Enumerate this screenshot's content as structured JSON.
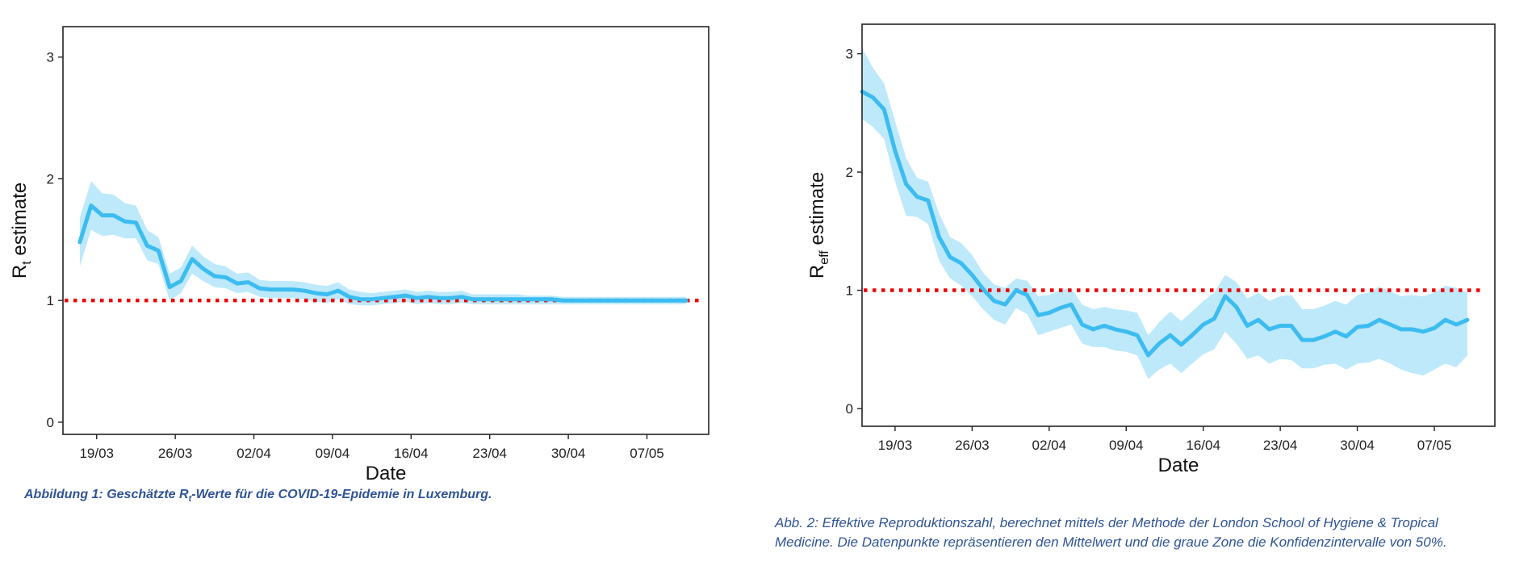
{
  "chart_data": [
    {
      "type": "line",
      "ylabel_main": "R",
      "ylabel_sub": "t",
      "ylabel_rest": " estimate",
      "xlabel": "Date",
      "ylim": [
        -0.1,
        3.25
      ],
      "yticks": [
        "0",
        "1",
        "2",
        "3"
      ],
      "xtick_labels": [
        "19/03",
        "26/03",
        "02/04",
        "09/04",
        "16/04",
        "23/04",
        "30/04",
        "07/05"
      ],
      "xtick_days": [
        3,
        10,
        17,
        24,
        31,
        38,
        45,
        52
      ],
      "xlim_days": [
        0,
        57.5
      ],
      "reference_line": 1,
      "series": [
        {
          "x_days": [
            1.5,
            2.5,
            3.5,
            4.5,
            5.5,
            6.5,
            7.5,
            8.5,
            9.5,
            10.5,
            11.5,
            12.5,
            13.5,
            14.5,
            15.5,
            16.5,
            17.5,
            18.5,
            19.5,
            20.5,
            21.5,
            22.5,
            23.5,
            24.5,
            25.5,
            26.5,
            27.5,
            28.5,
            29.5,
            30.5,
            31.5,
            32.5,
            33.5,
            34.5,
            35.5,
            36.5,
            37.5,
            38.5,
            39.5,
            40.5,
            41.5,
            42.5,
            43.5,
            44.5,
            45.5,
            46.5,
            47.5,
            48.5,
            49.5,
            50.5,
            51.5,
            52.5,
            53.5,
            54.5,
            55.5
          ],
          "mean": [
            1.48,
            1.78,
            1.7,
            1.7,
            1.65,
            1.64,
            1.45,
            1.41,
            1.11,
            1.16,
            1.34,
            1.26,
            1.2,
            1.19,
            1.14,
            1.15,
            1.1,
            1.09,
            1.09,
            1.09,
            1.08,
            1.06,
            1.05,
            1.08,
            1.03,
            1.01,
            1.01,
            1.02,
            1.03,
            1.04,
            1.02,
            1.03,
            1.02,
            1.02,
            1.03,
            1.01,
            1.01,
            1.01,
            1.01,
            1.01,
            1.01,
            1.01,
            1.01,
            1.0,
            1.0,
            1.0,
            1.0,
            1.0,
            1.0,
            1.0,
            1.0,
            1.0,
            1.0,
            1.0,
            1.0
          ],
          "lower": [
            1.28,
            1.58,
            1.53,
            1.54,
            1.51,
            1.51,
            1.33,
            1.3,
            1.0,
            1.06,
            1.22,
            1.16,
            1.11,
            1.1,
            1.06,
            1.07,
            1.03,
            1.02,
            1.02,
            1.02,
            1.01,
            0.99,
            0.98,
            1.01,
            0.97,
            0.96,
            0.96,
            0.97,
            0.98,
            0.99,
            0.97,
            0.98,
            0.97,
            0.97,
            0.98,
            0.97,
            0.97,
            0.97,
            0.97,
            0.97,
            0.97,
            0.97,
            0.97,
            0.97,
            0.97,
            0.97,
            0.97,
            0.97,
            0.97,
            0.97,
            0.97,
            0.97,
            0.97,
            0.97,
            0.97
          ],
          "upper": [
            1.68,
            1.98,
            1.88,
            1.87,
            1.8,
            1.78,
            1.58,
            1.52,
            1.22,
            1.27,
            1.45,
            1.36,
            1.3,
            1.28,
            1.22,
            1.23,
            1.17,
            1.16,
            1.16,
            1.16,
            1.15,
            1.13,
            1.12,
            1.15,
            1.09,
            1.07,
            1.06,
            1.07,
            1.08,
            1.09,
            1.07,
            1.08,
            1.07,
            1.07,
            1.08,
            1.05,
            1.05,
            1.05,
            1.05,
            1.05,
            1.04,
            1.04,
            1.04,
            1.03,
            1.03,
            1.03,
            1.03,
            1.03,
            1.03,
            1.03,
            1.03,
            1.03,
            1.03,
            1.03,
            1.03
          ]
        }
      ]
    },
    {
      "type": "line",
      "ylabel_main": "R",
      "ylabel_sub": "eff",
      "ylabel_rest": " estimate",
      "xlabel": "Date",
      "ylim": [
        -0.15,
        3.25
      ],
      "yticks": [
        "0",
        "1",
        "2",
        "3"
      ],
      "xtick_labels": [
        "19/03",
        "26/03",
        "02/04",
        "09/04",
        "16/04",
        "23/04",
        "30/04",
        "07/05"
      ],
      "xtick_days": [
        3,
        10,
        17,
        24,
        31,
        38,
        45,
        52
      ],
      "xlim_days": [
        0,
        57.5
      ],
      "reference_line": 1,
      "series": [
        {
          "x_days": [
            0,
            1,
            2,
            3,
            4,
            5,
            6,
            7,
            8,
            9,
            10,
            11,
            12,
            13,
            14,
            15,
            16,
            17,
            18,
            19,
            20,
            21,
            22,
            23,
            24,
            25,
            26,
            27,
            28,
            29,
            30,
            31,
            32,
            33,
            34,
            35,
            36,
            37,
            38,
            39,
            40,
            41,
            42,
            43,
            44,
            45,
            46,
            47,
            48,
            49,
            50,
            51,
            52,
            53,
            54,
            55
          ],
          "mean": [
            2.68,
            2.63,
            2.53,
            2.18,
            1.9,
            1.79,
            1.76,
            1.45,
            1.28,
            1.23,
            1.13,
            1.01,
            0.91,
            0.88,
            1.0,
            0.96,
            0.79,
            0.81,
            0.85,
            0.88,
            0.71,
            0.67,
            0.7,
            0.67,
            0.65,
            0.62,
            0.45,
            0.55,
            0.62,
            0.54,
            0.62,
            0.71,
            0.76,
            0.95,
            0.86,
            0.7,
            0.75,
            0.67,
            0.7,
            0.7,
            0.58,
            0.58,
            0.61,
            0.65,
            0.61,
            0.69,
            0.7,
            0.75,
            0.71,
            0.67,
            0.67,
            0.65,
            0.68,
            0.75,
            0.71,
            0.75
          ],
          "lower": [
            2.45,
            2.38,
            2.28,
            1.92,
            1.63,
            1.62,
            1.56,
            1.25,
            1.1,
            1.04,
            0.95,
            0.84,
            0.75,
            0.71,
            0.85,
            0.8,
            0.62,
            0.65,
            0.68,
            0.71,
            0.55,
            0.52,
            0.52,
            0.49,
            0.48,
            0.45,
            0.25,
            0.33,
            0.38,
            0.3,
            0.38,
            0.46,
            0.5,
            0.65,
            0.55,
            0.42,
            0.45,
            0.38,
            0.42,
            0.41,
            0.34,
            0.34,
            0.37,
            0.38,
            0.33,
            0.38,
            0.39,
            0.42,
            0.38,
            0.33,
            0.3,
            0.28,
            0.33,
            0.38,
            0.35,
            0.45
          ],
          "upper": [
            3.05,
            2.88,
            2.75,
            2.43,
            2.12,
            1.95,
            1.92,
            1.65,
            1.45,
            1.4,
            1.3,
            1.15,
            1.05,
            1.02,
            1.1,
            1.08,
            0.95,
            0.96,
            1.0,
            1.02,
            0.88,
            0.84,
            0.86,
            0.84,
            0.83,
            0.81,
            0.62,
            0.73,
            0.82,
            0.74,
            0.82,
            0.91,
            0.98,
            1.13,
            1.07,
            0.93,
            0.98,
            0.91,
            0.95,
            0.96,
            0.84,
            0.84,
            0.87,
            0.91,
            0.88,
            0.96,
            0.98,
            1.03,
            0.99,
            0.95,
            0.96,
            0.95,
            0.98,
            1.04,
            1.02,
            0.98
          ]
        }
      ]
    }
  ],
  "captions": {
    "fig1_before": "Abbildung 1: Geschätzte R",
    "fig1_sub": "t",
    "fig1_after": "-Werte für die COVID-19-Epidemie in Luxemburg.",
    "fig2_line1": "Abb. 2: Effektive Reproduktionszahl, berechnet mittels der Methode der London School of Hygiene & Tropical",
    "fig2_line2": "Medicine. Die Datenpunkte repräsentieren den Mittelwert und die graue Zone die Konfidenzintervalle von 50%."
  },
  "colors": {
    "band": "#bde9fb",
    "line": "#3cbcf0",
    "reference": "#ee0000",
    "caption": "#2f5496"
  }
}
